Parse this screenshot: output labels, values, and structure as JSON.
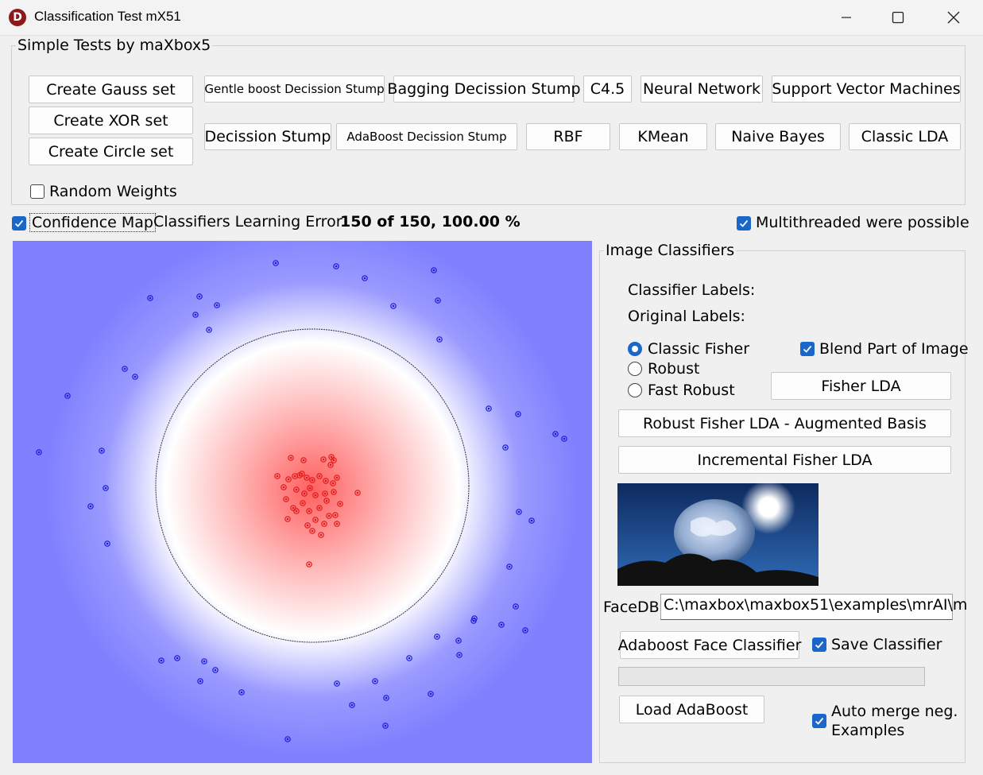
{
  "window": {
    "title": "Classification Test mX51",
    "app_icon_letter": "D"
  },
  "simple_tests": {
    "title": "Simple Tests by maXbox5",
    "create_gauss": "Create Gauss set",
    "create_xor": "Create XOR set",
    "create_circle": "Create Circle set",
    "gentle_boost": "Gentle boost Decission Stump",
    "bagging": "Bagging Decission Stump",
    "c45": "C4.5",
    "neural_network": "Neural Network",
    "svm": "Support Vector Machines",
    "decission_stump": "Decission Stump",
    "adaboost_stump": "AdaBoost Decission Stump",
    "rbf": "RBF",
    "kmean": "KMean",
    "naive_bayes": "Naive Bayes",
    "classic_lda": "Classic LDA",
    "random_weights": "Random Weights",
    "random_weights_checked": false
  },
  "status": {
    "confidence_map": "Confidence Map",
    "confidence_map_checked": true,
    "error_label": "Classifiers Learning Error",
    "error_value": "150 of 150, 100.00 %",
    "multithreaded": "Multithreaded were possible",
    "multithreaded_checked": true
  },
  "image_classifiers": {
    "title": "Image Classifiers",
    "classifier_labels": "Classifier Labels:",
    "original_labels": "Original Labels:",
    "radio_options": [
      "Classic Fisher",
      "Robust",
      "Fast Robust"
    ],
    "selected_option": "Classic Fisher",
    "blend_part": "Blend Part of Image",
    "blend_part_checked": true,
    "fisher_lda": "Fisher LDA",
    "robust_fisher": "Robust Fisher LDA - Augmented Basis",
    "incremental_fisher": "Incremental Fisher LDA",
    "facedb_label": "FaceDB",
    "facedb_path": "C:\\maxbox\\maxbox51\\examples\\mrAI\\m",
    "adaboost_face": "Adaboost Face Classifier",
    "save_classifier": "Save Classifier",
    "save_classifier_checked": true,
    "load_adaboost": "Load AdaBoost",
    "auto_merge_line1": "Auto merge neg.",
    "auto_merge_line2": "Examples",
    "auto_merge_checked": true,
    "progress": 0
  },
  "colors": {
    "background_class": "#8080ff",
    "inner_class": "#ff8080",
    "blue_point": "#1a1ad8",
    "red_point": "#e01818",
    "accent": "#1a66c9"
  }
}
